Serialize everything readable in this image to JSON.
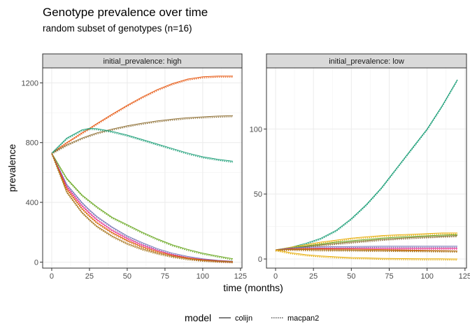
{
  "title": "Genotype prevalence over time",
  "subtitle": "random subset of genotypes (n=16)",
  "xlabel": "time (months)",
  "ylabel": "prevalence",
  "legend": {
    "title": "model",
    "entries": [
      {
        "label": "colijn",
        "linestyle": "solid"
      },
      {
        "label": "macpan2",
        "linestyle": "dotted"
      }
    ]
  },
  "chart_data": [
    {
      "type": "line",
      "facet": "initial_prevalence: high",
      "xlim": [
        -6,
        126
      ],
      "ylim": [
        -40,
        1300
      ],
      "x_ticks": [
        0,
        25,
        50,
        75,
        100,
        125
      ],
      "y_ticks": [
        0,
        400,
        800,
        1200
      ],
      "grid": true,
      "x": [
        0,
        10,
        20,
        25,
        30,
        40,
        50,
        60,
        70,
        80,
        90,
        100,
        110,
        120
      ],
      "series": [
        {
          "color": "#e6550d",
          "values": [
            730,
            800,
            865,
            895,
            928,
            990,
            1050,
            1105,
            1155,
            1195,
            1225,
            1240,
            1245,
            1245
          ]
        },
        {
          "color": "#8c6d31",
          "values": [
            730,
            785,
            830,
            848,
            865,
            890,
            912,
            930,
            945,
            957,
            966,
            972,
            977,
            980
          ]
        },
        {
          "color": "#1b9e77",
          "values": [
            730,
            830,
            885,
            895,
            893,
            875,
            850,
            820,
            790,
            760,
            730,
            705,
            688,
            675
          ]
        },
        {
          "color": "#66a61e",
          "values": [
            730,
            560,
            450,
            410,
            370,
            300,
            250,
            200,
            155,
            115,
            85,
            60,
            40,
            22
          ]
        },
        {
          "color": "#7570b3",
          "values": [
            730,
            520,
            400,
            350,
            305,
            235,
            175,
            130,
            90,
            60,
            38,
            22,
            12,
            6
          ]
        },
        {
          "color": "#e7298a",
          "values": [
            730,
            505,
            380,
            330,
            285,
            215,
            160,
            115,
            78,
            50,
            30,
            17,
            9,
            4
          ]
        },
        {
          "color": "#d95f02",
          "values": [
            730,
            490,
            360,
            310,
            265,
            198,
            145,
            102,
            70,
            45,
            28,
            15,
            8,
            3
          ]
        },
        {
          "color": "#a6761d",
          "values": [
            730,
            470,
            335,
            285,
            240,
            175,
            125,
            88,
            60,
            38,
            22,
            12,
            6,
            2
          ]
        }
      ]
    },
    {
      "type": "line",
      "facet": "initial_prevalence: low",
      "xlim": [
        -6,
        126
      ],
      "ylim": [
        -7,
        147
      ],
      "x_ticks": [
        0,
        25,
        50,
        75,
        100,
        125
      ],
      "y_ticks": [
        0,
        50,
        100
      ],
      "grid": true,
      "x": [
        0,
        10,
        20,
        30,
        40,
        50,
        60,
        70,
        80,
        90,
        100,
        110,
        120
      ],
      "series": [
        {
          "color": "#1b9e77",
          "values": [
            7,
            9,
            12,
            16,
            22,
            31,
            42,
            55,
            70,
            85,
            100,
            118,
            138
          ]
        },
        {
          "color": "#e6ab02",
          "values": [
            7,
            9,
            11,
            13,
            14.5,
            16,
            17,
            18,
            18.5,
            19,
            19.5,
            20,
            20
          ]
        },
        {
          "color": "#66a61e",
          "values": [
            7,
            8.5,
            10,
            11.5,
            13,
            14,
            15,
            16,
            16.7,
            17.3,
            17.8,
            18.3,
            18.7
          ]
        },
        {
          "color": "#8c6d31",
          "values": [
            7,
            8.3,
            9.5,
            10.8,
            12,
            13,
            14,
            15,
            15.8,
            16.5,
            17,
            17.5,
            18
          ]
        },
        {
          "color": "#7570b3",
          "values": [
            7,
            8.5,
            9,
            9.3,
            9.5,
            9.6,
            9.7,
            9.8,
            9.8,
            9.8,
            9.8,
            9.8,
            9.8
          ]
        },
        {
          "color": "#e7298a",
          "values": [
            7,
            7.8,
            8,
            8.2,
            8.3,
            8.3,
            8.3,
            8.3,
            8.3,
            8.3,
            8.3,
            8.3,
            8.3
          ]
        },
        {
          "color": "#d95f02",
          "values": [
            7,
            7.6,
            7.8,
            7.8,
            7.7,
            7.6,
            7.4,
            7.2,
            7,
            6.8,
            6.6,
            6.4,
            6.2
          ]
        },
        {
          "color": "#a6761d",
          "values": [
            7,
            7.3,
            7.2,
            7,
            6.9,
            6.8,
            6.7,
            6.6,
            6.5,
            6.4,
            6.3,
            6.2,
            6.1
          ]
        },
        {
          "color": "#e6ab02",
          "values": [
            7,
            4.8,
            3.3,
            2.3,
            1.6,
            1.1,
            0.8,
            0.5,
            0.3,
            0.2,
            0.1,
            0.1,
            0
          ]
        }
      ]
    }
  ]
}
